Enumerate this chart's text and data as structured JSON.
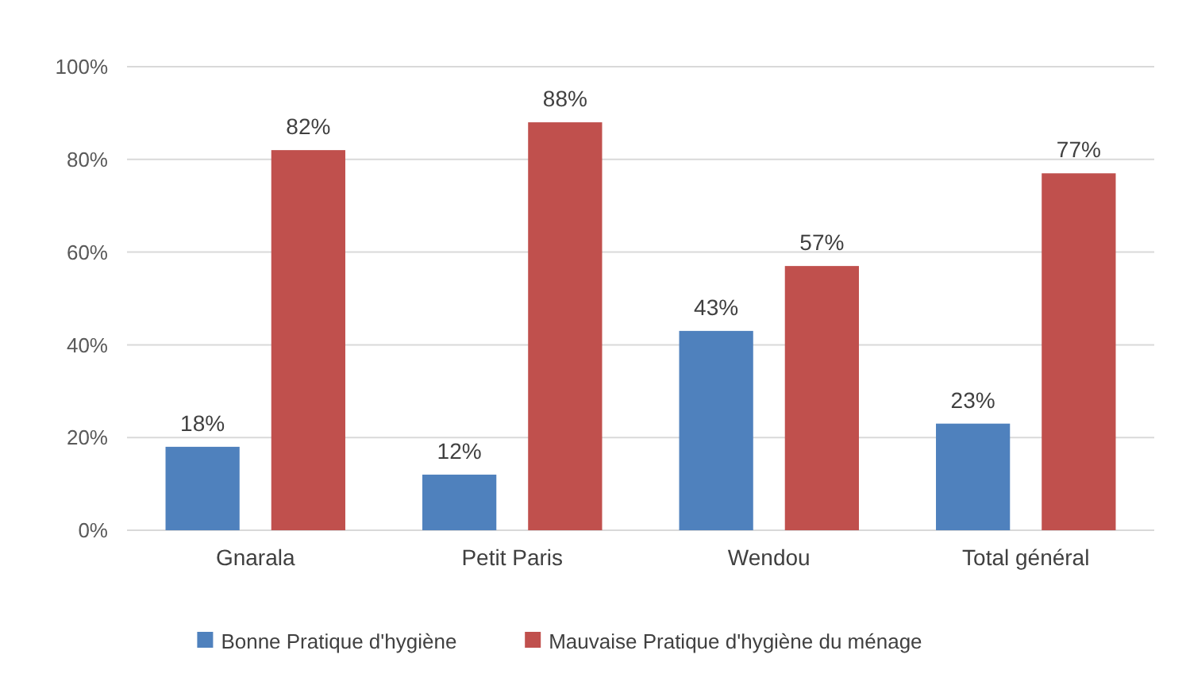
{
  "chart_data": {
    "type": "bar",
    "categories": [
      "Gnarala",
      "Petit Paris",
      "Wendou",
      "Total général"
    ],
    "series": [
      {
        "name": "Bonne Pratique d'hygiène",
        "color": "#4f81bd",
        "values": [
          18,
          12,
          43,
          23
        ],
        "value_labels": [
          "18%",
          "12%",
          "43%",
          "23%"
        ]
      },
      {
        "name": "Mauvaise Pratique d'hygiène du ménage",
        "color": "#c0504d",
        "values": [
          82,
          88,
          57,
          77
        ],
        "value_labels": [
          "82%",
          "88%",
          "57%",
          "77%"
        ]
      }
    ],
    "ylim": [
      0,
      100
    ],
    "yticks": [
      {
        "value": 0,
        "label": "0%"
      },
      {
        "value": 20,
        "label": "20%"
      },
      {
        "value": 40,
        "label": "40%"
      },
      {
        "value": 60,
        "label": "60%"
      },
      {
        "value": 80,
        "label": "80%"
      },
      {
        "value": 100,
        "label": "100%"
      }
    ],
    "grid": "y",
    "legend": "bottom"
  }
}
